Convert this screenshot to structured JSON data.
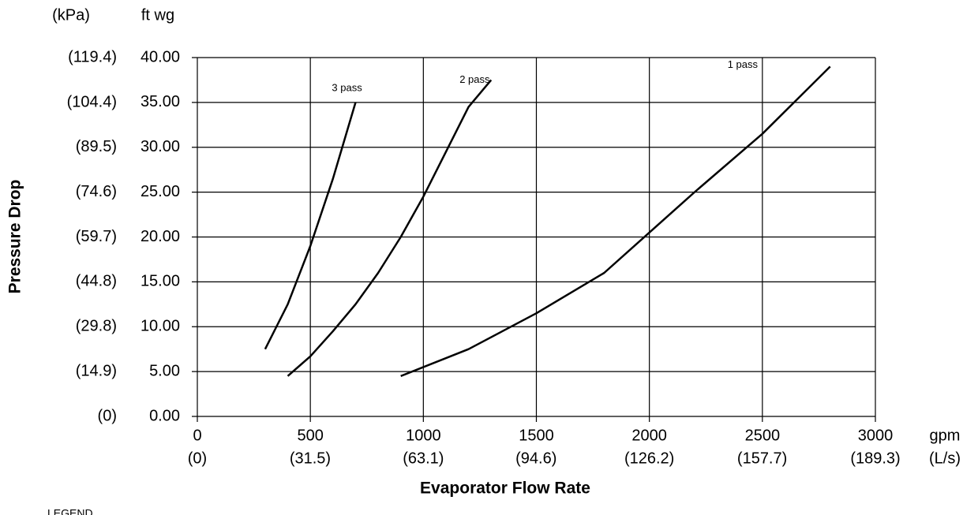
{
  "chart_data": {
    "type": "line",
    "x_label": "Evaporator Flow Rate",
    "y_label": "Pressure Drop",
    "x_unit": "gpm",
    "x2_unit": "(L/s)",
    "y_unit": "ft wg",
    "y2_unit": "(kPa)",
    "legend_title": "LEGEND",
    "xlim": [
      0,
      3000
    ],
    "xticks": [
      0,
      500,
      1000,
      1500,
      2000,
      2500,
      3000
    ],
    "x2lim": [
      0,
      189.3
    ],
    "x2ticks": [
      {
        "value": 0,
        "label": "(0)"
      },
      {
        "value": 31.5,
        "label": "(31.5)"
      },
      {
        "value": 63.1,
        "label": "(63.1)"
      },
      {
        "value": 94.6,
        "label": "(94.6)"
      },
      {
        "value": 126.2,
        "label": "(126.2)"
      },
      {
        "value": 157.7,
        "label": "(157.7)"
      },
      {
        "value": 189.3,
        "label": "(189.3)"
      }
    ],
    "ylim": [
      0,
      40
    ],
    "yticks": [
      {
        "value": 0,
        "label": "0.00"
      },
      {
        "value": 5,
        "label": "5.00"
      },
      {
        "value": 10,
        "label": "10.00"
      },
      {
        "value": 15,
        "label": "15.00"
      },
      {
        "value": 20,
        "label": "20.00"
      },
      {
        "value": 25,
        "label": "25.00"
      },
      {
        "value": 30,
        "label": "30.00"
      },
      {
        "value": 35,
        "label": "35.00"
      },
      {
        "value": 40,
        "label": "40.00"
      }
    ],
    "y2lim": [
      0,
      119.4
    ],
    "y2ticks": [
      {
        "value": 0,
        "label": "(0)"
      },
      {
        "value": 14.9,
        "label": "(14.9)"
      },
      {
        "value": 29.8,
        "label": "(29.8)"
      },
      {
        "value": 44.8,
        "label": "(44.8)"
      },
      {
        "value": 59.7,
        "label": "(59.7)"
      },
      {
        "value": 74.6,
        "label": "(74.6)"
      },
      {
        "value": 89.5,
        "label": "(89.5)"
      },
      {
        "value": 104.4,
        "label": "(104.4)"
      },
      {
        "value": 119.4,
        "label": "(119.4)"
      }
    ],
    "grid": true,
    "series": [
      {
        "name": "3 pass",
        "color": "#000000",
        "x": [
          300,
          350,
          400,
          500,
          600,
          700
        ],
        "values": [
          7.5,
          10,
          12.5,
          19,
          26.5,
          35
        ]
      },
      {
        "name": "2 pass",
        "color": "#000000",
        "x": [
          400,
          500,
          600,
          700,
          800,
          900,
          1000,
          1100,
          1200,
          1300
        ],
        "values": [
          4.5,
          6.7,
          9.5,
          12.5,
          16,
          20,
          24.5,
          29.5,
          34.5,
          37.5
        ]
      },
      {
        "name": "1 pass",
        "color": "#000000",
        "x": [
          900,
          1200,
          1500,
          1800,
          2000,
          2200,
          2500,
          2800
        ],
        "values": [
          4.5,
          7.5,
          11.5,
          16,
          20.5,
          25,
          31.5,
          39
        ]
      }
    ]
  }
}
